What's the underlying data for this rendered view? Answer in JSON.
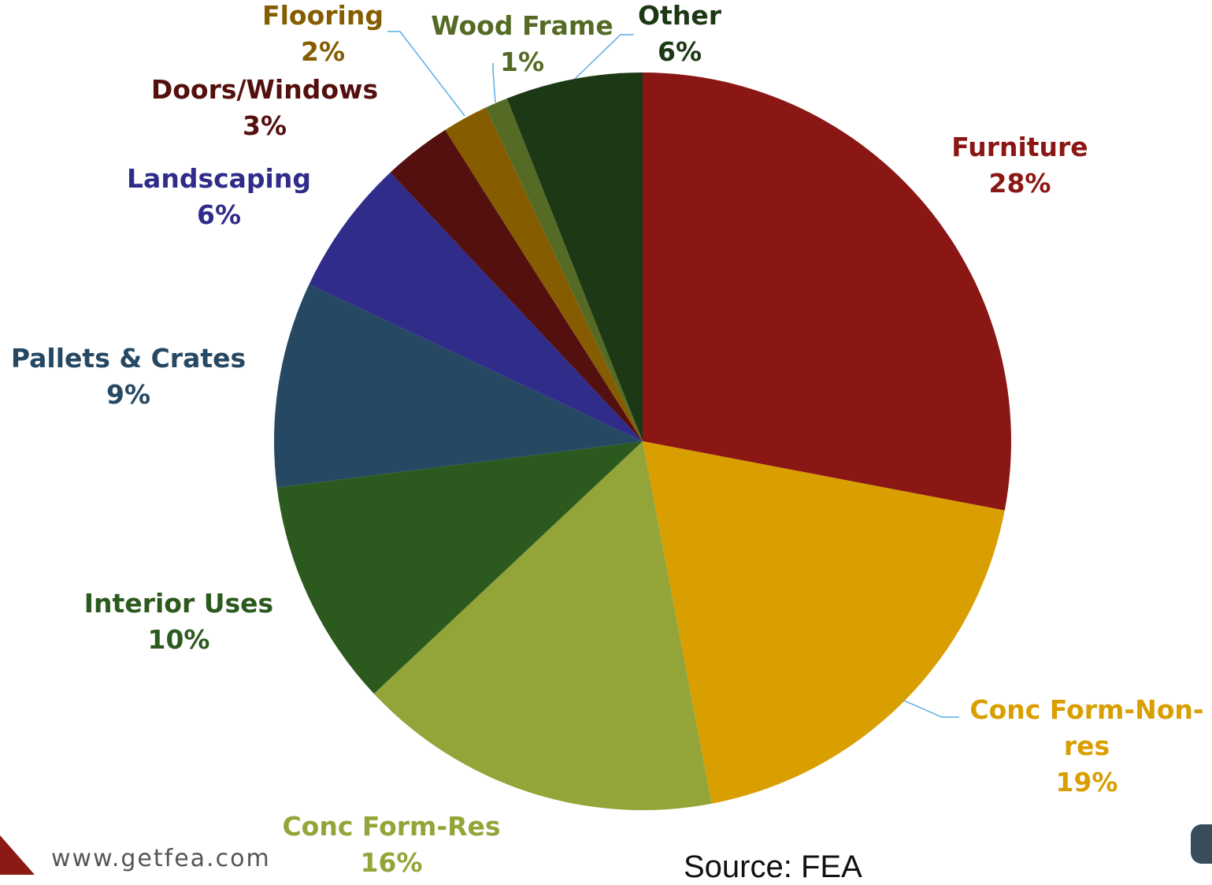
{
  "chart_data": {
    "type": "pie",
    "title": "",
    "slices": [
      {
        "label": "Furniture",
        "percent_label": "28%",
        "value": 28,
        "color": "#8b1714"
      },
      {
        "label": "Conc Form-Non-res",
        "percent_label": "19%",
        "value": 19,
        "color": "#d99e00"
      },
      {
        "label": "Conc Form-Res",
        "percent_label": "16%",
        "value": 16,
        "color": "#93a538"
      },
      {
        "label": "Interior Uses",
        "percent_label": "10%",
        "value": 10,
        "color": "#2c5a1e"
      },
      {
        "label": "Pallets & Crates",
        "percent_label": "9%",
        "value": 9,
        "color": "#264862"
      },
      {
        "label": "Landscaping",
        "percent_label": "6%",
        "value": 6,
        "color": "#302c8a"
      },
      {
        "label": "Doors/Windows",
        "percent_label": "3%",
        "value": 3,
        "color": "#540f0f"
      },
      {
        "label": "Flooring",
        "percent_label": "2%",
        "value": 2,
        "color": "#865c00"
      },
      {
        "label": "Wood Frame",
        "percent_label": "1%",
        "value": 1,
        "color": "#556b25"
      },
      {
        "label": "Other",
        "percent_label": "6%",
        "value": 6,
        "color": "#1c3815"
      }
    ]
  },
  "footer": {
    "url": "www.getfea.com",
    "source": "Source: FEA"
  },
  "colors": {
    "leader_line": "#5aaee0",
    "logo_red": "#8b1a14"
  }
}
